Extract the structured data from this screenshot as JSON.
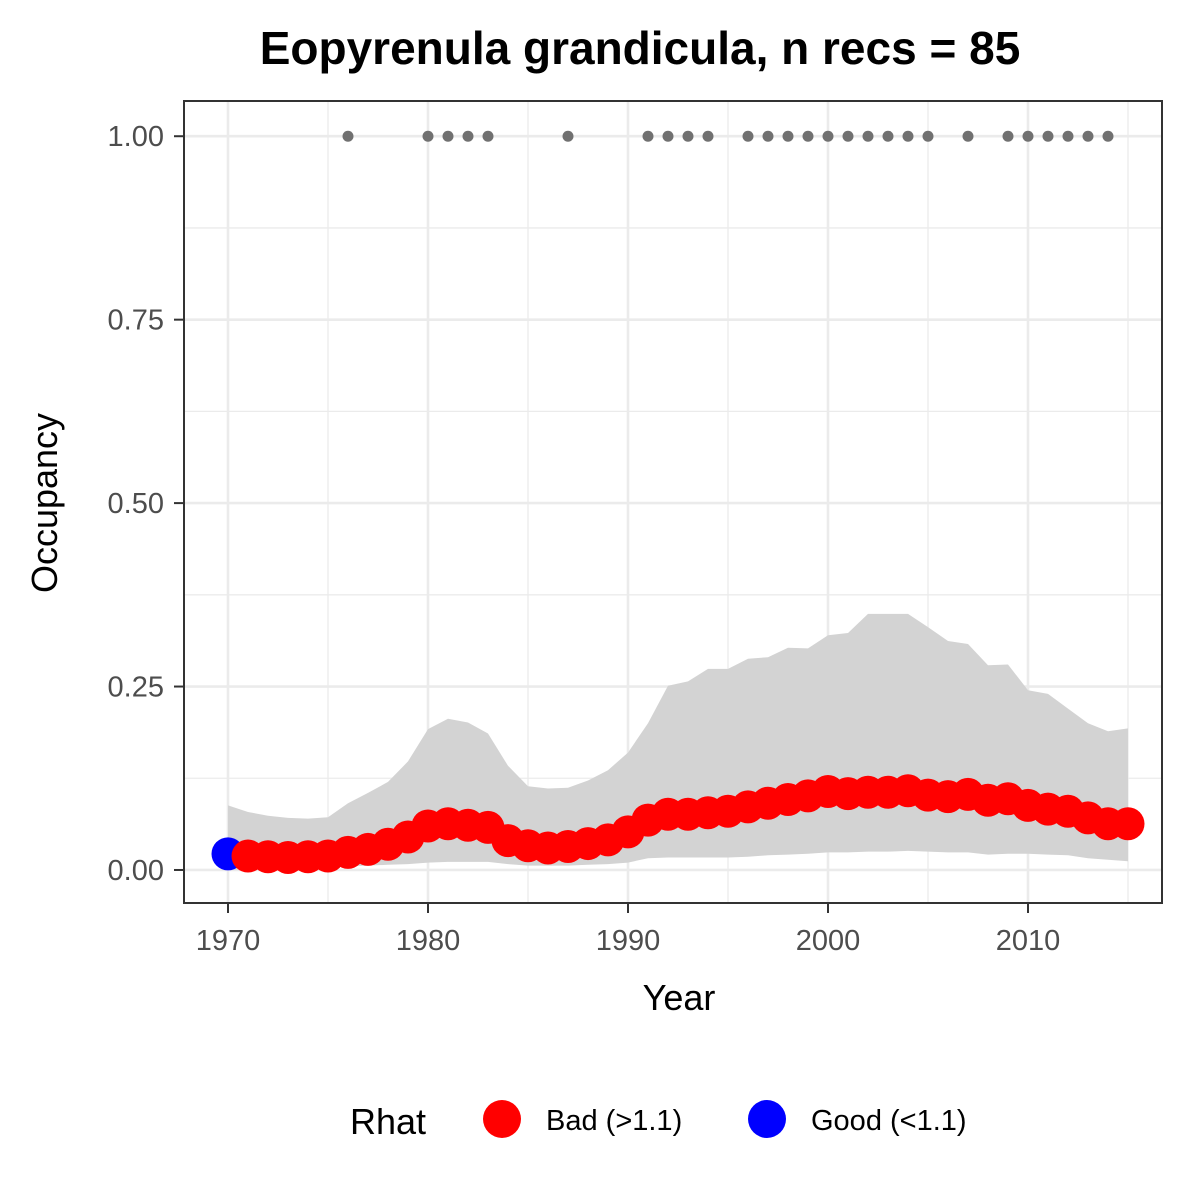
{
  "chart_data": {
    "type": "line",
    "title": "Eopyrenula grandicula, n recs = 85",
    "xlabel": "Year",
    "ylabel": "Occupancy",
    "xlim": [
      1967.8,
      2016.7
    ],
    "ylim": [
      -0.045,
      1.048
    ],
    "x_ticks": [
      1970,
      1980,
      1990,
      2000,
      2010
    ],
    "x_tick_labels": [
      "1970",
      "1980",
      "1990",
      "2000",
      "2010"
    ],
    "y_ticks": [
      0,
      0.25,
      0.5,
      0.75,
      1.0
    ],
    "y_tick_labels": [
      "0.00",
      "0.25",
      "0.50",
      "0.75",
      "1.00"
    ],
    "grid": true,
    "legend": {
      "title": "Rhat",
      "position": "bottom",
      "entries": [
        {
          "label": "Bad (>1.1)",
          "color": "#ff0000"
        },
        {
          "label": "Good (<1.1)",
          "color": "#0000ff"
        }
      ]
    },
    "x": [
      1970,
      1971,
      1972,
      1973,
      1974,
      1975,
      1976,
      1977,
      1978,
      1979,
      1980,
      1981,
      1982,
      1983,
      1984,
      1985,
      1986,
      1987,
      1988,
      1989,
      1990,
      1991,
      1992,
      1993,
      1994,
      1995,
      1996,
      1997,
      1998,
      1999,
      2000,
      2001,
      2002,
      2003,
      2004,
      2005,
      2006,
      2007,
      2008,
      2009,
      2010,
      2011,
      2012,
      2013,
      2014,
      2015
    ],
    "series": [
      {
        "values": [
          0.022,
          0.019,
          0.018,
          0.017,
          0.018,
          0.019,
          0.024,
          0.028,
          0.035,
          0.045,
          0.06,
          0.063,
          0.061,
          0.058,
          0.04,
          0.033,
          0.03,
          0.032,
          0.036,
          0.041,
          0.052,
          0.068,
          0.076,
          0.076,
          0.078,
          0.08,
          0.086,
          0.091,
          0.096,
          0.101,
          0.107,
          0.104,
          0.106,
          0.106,
          0.108,
          0.102,
          0.1,
          0.103,
          0.095,
          0.097,
          0.088,
          0.083,
          0.08,
          0.071,
          0.063,
          0.063
        ],
        "rhat": [
          "Good",
          "Bad",
          "Bad",
          "Bad",
          "Bad",
          "Bad",
          "Bad",
          "Bad",
          "Bad",
          "Bad",
          "Bad",
          "Bad",
          "Bad",
          "Bad",
          "Bad",
          "Bad",
          "Bad",
          "Bad",
          "Bad",
          "Bad",
          "Bad",
          "Bad",
          "Bad",
          "Bad",
          "Bad",
          "Bad",
          "Bad",
          "Bad",
          "Bad",
          "Bad",
          "Bad",
          "Bad",
          "Bad",
          "Bad",
          "Bad",
          "Bad",
          "Bad",
          "Bad",
          "Bad",
          "Bad",
          "Bad",
          "Bad",
          "Bad",
          "Bad",
          "Bad",
          "Bad"
        ],
        "lower": [
          0.0,
          0.001,
          0.002,
          0.003,
          0.003,
          0.004,
          0.005,
          0.006,
          0.007,
          0.008,
          0.01,
          0.011,
          0.011,
          0.011,
          0.008,
          0.006,
          0.006,
          0.006,
          0.007,
          0.008,
          0.01,
          0.016,
          0.017,
          0.017,
          0.017,
          0.017,
          0.018,
          0.02,
          0.021,
          0.022,
          0.024,
          0.024,
          0.025,
          0.025,
          0.026,
          0.025,
          0.024,
          0.024,
          0.021,
          0.022,
          0.022,
          0.021,
          0.02,
          0.016,
          0.014,
          0.012
        ],
        "upper": [
          0.088,
          0.079,
          0.074,
          0.071,
          0.07,
          0.072,
          0.091,
          0.105,
          0.12,
          0.148,
          0.192,
          0.206,
          0.201,
          0.186,
          0.142,
          0.114,
          0.111,
          0.112,
          0.122,
          0.136,
          0.16,
          0.2,
          0.251,
          0.257,
          0.274,
          0.274,
          0.288,
          0.29,
          0.303,
          0.302,
          0.32,
          0.323,
          0.349,
          0.349,
          0.349,
          0.331,
          0.312,
          0.308,
          0.279,
          0.28,
          0.245,
          0.24,
          0.22,
          0.2,
          0.189,
          0.193
        ]
      }
    ],
    "records": {
      "y": 1.0,
      "years": [
        1976,
        1980,
        1981,
        1982,
        1983,
        1987,
        1991,
        1992,
        1993,
        1994,
        1996,
        1997,
        1998,
        1999,
        2000,
        2001,
        2002,
        2003,
        2004,
        2005,
        2007,
        2009,
        2010,
        2011,
        2012,
        2013,
        2014
      ]
    },
    "colors": {
      "band": "#d3d3d3",
      "bad": "#ff0000",
      "good": "#0000ff",
      "records": "#707070",
      "grid": "#ebebeb",
      "panel_border": "#333333"
    }
  }
}
